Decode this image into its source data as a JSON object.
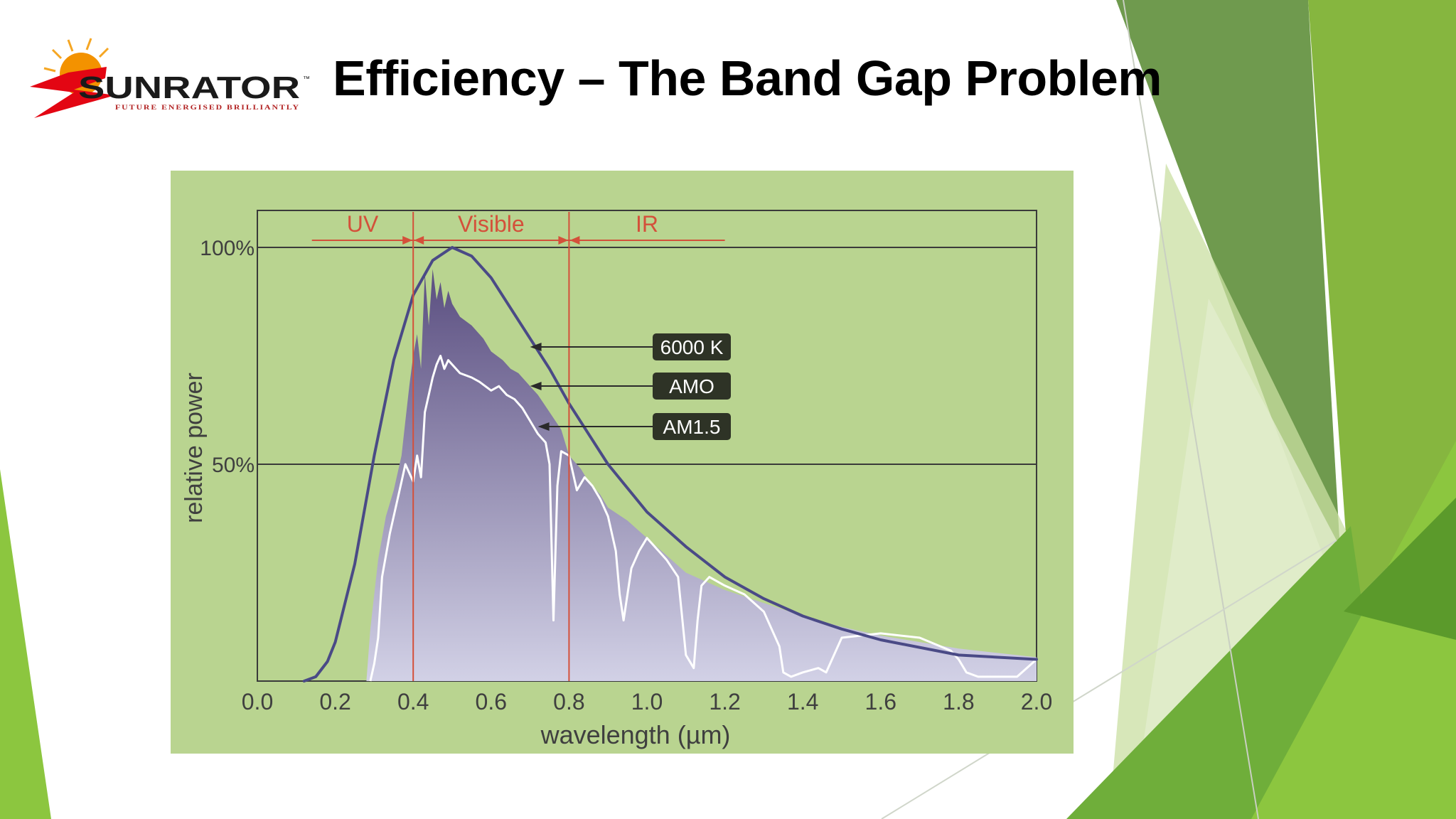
{
  "slide": {
    "title": "Efficiency – The Band Gap Problem",
    "logo": {
      "text": "SUNRATOR",
      "tagline": "FUTURE ENERGISED BRILLIANTLY",
      "trademark": "™"
    }
  },
  "colors": {
    "chart_background": "#b9d490",
    "curve_6000k": "#4a4a86",
    "fill_amo_top": "#5a4e80",
    "fill_amo_bottom": "#d2d1e6",
    "curve_am15": "#ffffff",
    "region_lines": "#d4503a",
    "callout_box": "#2e3326",
    "accent_green": "#8cc63f"
  },
  "chart_data": {
    "type": "line",
    "xlabel": "wavelength (µm)",
    "ylabel": "relative power",
    "xlim": [
      0.0,
      2.0
    ],
    "ylim": [
      0,
      100
    ],
    "x_ticks": [
      0.0,
      0.2,
      0.4,
      0.6,
      0.8,
      1.0,
      1.2,
      1.4,
      1.6,
      1.8,
      2.0
    ],
    "x_tick_labels": [
      "0.0",
      "0.2",
      "0.4",
      "0.6",
      "0.8",
      "1.0",
      "1.2",
      "1.4",
      "1.6",
      "1.8",
      "2.0"
    ],
    "y_ticks": [
      50,
      100
    ],
    "y_tick_labels": [
      "50%",
      "100%"
    ],
    "gridlines_y": [
      50,
      100
    ],
    "regions": [
      {
        "label": "UV",
        "from": 0.14,
        "to": 0.4
      },
      {
        "label": "Visible",
        "from": 0.4,
        "to": 0.8
      },
      {
        "label": "IR",
        "from": 0.8,
        "to": 1.2
      }
    ],
    "region_boundaries": [
      0.4,
      0.8
    ],
    "series": [
      {
        "name": "6000 K",
        "style": "curve",
        "x": [
          0.12,
          0.15,
          0.18,
          0.2,
          0.25,
          0.3,
          0.35,
          0.4,
          0.45,
          0.5,
          0.55,
          0.6,
          0.65,
          0.7,
          0.75,
          0.8,
          0.85,
          0.9,
          1.0,
          1.1,
          1.2,
          1.3,
          1.4,
          1.5,
          1.6,
          1.8,
          2.0
        ],
        "y": [
          0,
          1,
          4.5,
          9,
          27,
          52,
          74,
          89,
          97,
          100,
          98,
          93,
          86,
          79,
          72,
          64,
          57,
          50,
          39,
          31,
          24,
          19,
          15,
          12,
          9.5,
          6,
          5
        ]
      },
      {
        "name": "AMO",
        "style": "filled",
        "x": [
          0.28,
          0.29,
          0.3,
          0.31,
          0.33,
          0.35,
          0.37,
          0.38,
          0.39,
          0.4,
          0.41,
          0.42,
          0.43,
          0.44,
          0.45,
          0.46,
          0.47,
          0.48,
          0.49,
          0.5,
          0.52,
          0.55,
          0.58,
          0.6,
          0.63,
          0.65,
          0.67,
          0.7,
          0.72,
          0.75,
          0.78,
          0.8,
          0.83,
          0.85,
          0.88,
          0.9,
          0.95,
          1.0,
          1.05,
          1.1,
          1.2,
          1.3,
          1.4,
          1.5,
          1.6,
          1.7,
          1.8,
          1.9,
          2.0
        ],
        "y": [
          0,
          12,
          20,
          28,
          38,
          44,
          52,
          60,
          68,
          75,
          80,
          72,
          94,
          82,
          95,
          88,
          92,
          86,
          90,
          87,
          84,
          82,
          79,
          76,
          74,
          72,
          71,
          68,
          66,
          62,
          58,
          52,
          49,
          46,
          43,
          40,
          37,
          33,
          29,
          25,
          21,
          18,
          15,
          12.5,
          10.5,
          9,
          7.5,
          6.5,
          5.5
        ]
      },
      {
        "name": "AM1.5",
        "style": "line",
        "x": [
          0.29,
          0.3,
          0.31,
          0.32,
          0.34,
          0.36,
          0.37,
          0.38,
          0.39,
          0.4,
          0.41,
          0.42,
          0.43,
          0.44,
          0.45,
          0.46,
          0.47,
          0.48,
          0.49,
          0.5,
          0.52,
          0.55,
          0.57,
          0.6,
          0.62,
          0.64,
          0.66,
          0.68,
          0.7,
          0.72,
          0.74,
          0.75,
          0.76,
          0.77,
          0.78,
          0.8,
          0.82,
          0.84,
          0.86,
          0.88,
          0.9,
          0.92,
          0.93,
          0.94,
          0.96,
          0.98,
          1.0,
          1.05,
          1.08,
          1.1,
          1.12,
          1.13,
          1.14,
          1.16,
          1.2,
          1.25,
          1.3,
          1.34,
          1.35,
          1.37,
          1.4,
          1.44,
          1.46,
          1.5,
          1.6,
          1.7,
          1.78,
          1.8,
          1.82,
          1.85,
          1.9,
          1.95,
          2.0
        ],
        "y": [
          0,
          4,
          10,
          24,
          34,
          42,
          46,
          50,
          48,
          46,
          52,
          47,
          62,
          66,
          70,
          73,
          75,
          72,
          74,
          73,
          71,
          70,
          69,
          67,
          68,
          66,
          65,
          63,
          60,
          57,
          55,
          50,
          14,
          45,
          53,
          52,
          44,
          47,
          45,
          42,
          38,
          30,
          20,
          14,
          26,
          30,
          33,
          28,
          24,
          6,
          3,
          14,
          22,
          24,
          22,
          20,
          16,
          8,
          2,
          1,
          2,
          3,
          2,
          10,
          11,
          10,
          7,
          5,
          2,
          1,
          1,
          1,
          5
        ]
      }
    ],
    "annotations": [
      {
        "label": "6000 K",
        "points_to": [
          0.7,
          77
        ]
      },
      {
        "label": "AMO",
        "points_to": [
          0.7,
          67
        ]
      },
      {
        "label": "AM1.5",
        "points_to": [
          0.72,
          58
        ]
      }
    ]
  }
}
